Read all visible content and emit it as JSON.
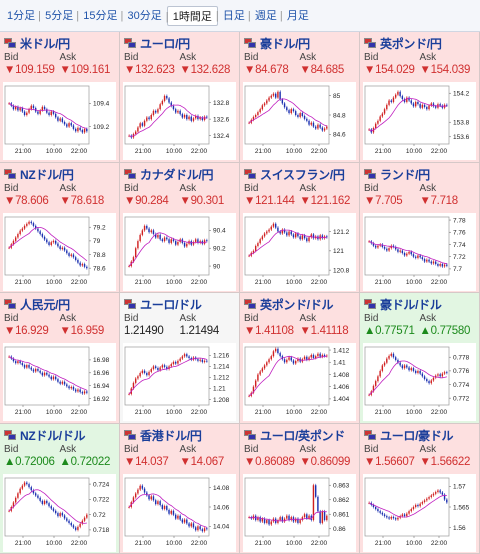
{
  "tabs": [
    {
      "label": "1分足"
    },
    {
      "label": "5分足"
    },
    {
      "label": "15分足"
    },
    {
      "label": "30分足"
    },
    {
      "label": "1時間足",
      "active": true
    },
    {
      "label": "日足"
    },
    {
      "label": "週足"
    },
    {
      "label": "月足"
    }
  ],
  "labels": {
    "bid": "Bid",
    "ask": "Ask"
  },
  "colors": {
    "down_bg": "#fde0e0",
    "up_bg": "#e2f6e2",
    "flat_bg": "#f6f6f6",
    "down_text": "#d03030",
    "up_text": "#1c8a1c",
    "candle_up": "#d02020",
    "candle_down": "#1a2fb0",
    "ma": "#c020c0"
  },
  "pairs": [
    {
      "name": "米ドル/円",
      "trend": "down",
      "bid": "▼109.159",
      "ask": "▼109.161",
      "chart_data": {
        "type": "candlestick",
        "x_ticks": [
          "21:00",
          "10:00",
          "22:00"
        ],
        "y_ticks": [
          "109.4",
          "109.2"
        ],
        "ylim": [
          109.05,
          109.55
        ],
        "close": [
          109.4,
          109.38,
          109.35,
          109.37,
          109.34,
          109.36,
          109.33,
          109.3,
          109.32,
          109.35,
          109.38,
          109.36,
          109.33,
          109.31,
          109.34,
          109.37,
          109.35,
          109.32,
          109.3,
          109.33,
          109.31,
          109.28,
          109.25,
          109.27,
          109.24,
          109.22,
          109.2,
          109.23,
          109.21,
          109.18,
          109.16,
          109.19,
          109.17,
          109.15,
          109.18,
          109.16
        ]
      }
    },
    {
      "name": "ユーロ/円",
      "trend": "down",
      "bid": "▼132.623",
      "ask": "▼132.628",
      "chart_data": {
        "type": "candlestick",
        "x_ticks": [
          "21:00",
          "10:00",
          "22:00"
        ],
        "y_ticks": [
          "132.8",
          "132.6",
          "132.4"
        ],
        "ylim": [
          132.3,
          133.0
        ],
        "close": [
          132.4,
          132.38,
          132.42,
          132.45,
          132.5,
          132.55,
          132.52,
          132.58,
          132.62,
          132.6,
          132.65,
          132.7,
          132.68,
          132.72,
          132.78,
          132.82,
          132.88,
          132.85,
          132.8,
          132.76,
          132.72,
          132.68,
          132.7,
          132.66,
          132.62,
          132.65,
          132.6,
          132.63,
          132.58,
          132.61,
          132.64,
          132.6,
          132.62,
          132.59,
          132.63,
          132.62
        ]
      }
    },
    {
      "name": "豪ドル/円",
      "trend": "down",
      "bid": "▼84.678",
      "ask": "▼84.685",
      "chart_data": {
        "type": "candlestick",
        "x_ticks": [
          "21:00",
          "10:00",
          "22:00"
        ],
        "y_ticks": [
          "85",
          "84.8",
          "84.6"
        ],
        "ylim": [
          84.5,
          85.1
        ],
        "close": [
          84.72,
          84.75,
          84.78,
          84.8,
          84.83,
          84.86,
          84.9,
          84.92,
          84.95,
          84.98,
          85.0,
          85.02,
          84.98,
          85.04,
          84.96,
          84.92,
          84.88,
          84.85,
          84.82,
          84.86,
          84.84,
          84.8,
          84.78,
          84.82,
          84.79,
          84.76,
          84.74,
          84.7,
          84.72,
          84.68,
          84.66,
          84.7,
          84.67,
          84.64,
          84.66,
          84.68
        ]
      }
    },
    {
      "name": "英ポンド/円",
      "trend": "down",
      "bid": "▼154.029",
      "ask": "▼154.039",
      "chart_data": {
        "type": "candlestick",
        "x_ticks": [
          "21:00",
          "10:00",
          "22:00"
        ],
        "y_ticks": [
          "154.2",
          "153.8",
          "153.6"
        ],
        "ylim": [
          153.5,
          154.3
        ],
        "close": [
          153.7,
          153.66,
          153.72,
          153.78,
          153.82,
          153.88,
          153.92,
          153.98,
          154.04,
          154.1,
          154.08,
          154.14,
          154.18,
          154.22,
          154.16,
          154.12,
          154.08,
          154.14,
          154.1,
          154.06,
          154.02,
          154.08,
          154.05,
          154.0,
          154.04,
          154.01,
          153.98,
          154.03,
          154.06,
          154.02,
          154.0,
          154.05,
          154.03,
          154.0,
          154.04,
          154.03
        ]
      }
    },
    {
      "name": "NZドル/円",
      "trend": "down",
      "bid": "▼78.606",
      "ask": "▼78.618",
      "chart_data": {
        "type": "candlestick",
        "x_ticks": [
          "21:00",
          "10:00",
          "22:00"
        ],
        "y_ticks": [
          "79.2",
          "79",
          "78.8",
          "78.6"
        ],
        "ylim": [
          78.5,
          79.35
        ],
        "close": [
          78.9,
          78.95,
          79.0,
          79.05,
          79.1,
          79.15,
          79.18,
          79.22,
          79.25,
          79.28,
          79.26,
          79.22,
          79.18,
          79.14,
          79.1,
          79.06,
          79.02,
          78.98,
          78.94,
          78.98,
          79.0,
          78.96,
          78.92,
          78.88,
          78.9,
          78.86,
          78.82,
          78.78,
          78.8,
          78.76,
          78.72,
          78.68,
          78.64,
          78.66,
          78.62,
          78.6
        ]
      }
    },
    {
      "name": "カナダドル/円",
      "trend": "down",
      "bid": "▼90.284",
      "ask": "▼90.301",
      "chart_data": {
        "type": "candlestick",
        "x_ticks": [
          "21:00",
          "10:00",
          "22:00"
        ],
        "y_ticks": [
          "90.4",
          "90.2",
          "90"
        ],
        "ylim": [
          89.9,
          90.55
        ],
        "close": [
          90.0,
          90.05,
          90.1,
          90.2,
          90.28,
          90.35,
          90.4,
          90.45,
          90.42,
          90.38,
          90.4,
          90.36,
          90.32,
          90.35,
          90.3,
          90.28,
          90.32,
          90.3,
          90.26,
          90.3,
          90.28,
          90.24,
          90.27,
          90.3,
          90.26,
          90.22,
          90.25,
          90.28,
          90.24,
          90.27,
          90.3,
          90.26,
          90.28,
          90.25,
          90.29,
          90.28
        ]
      }
    },
    {
      "name": "スイスフラン/円",
      "trend": "down",
      "bid": "▼121.144",
      "ask": "▼121.162",
      "chart_data": {
        "type": "candlestick",
        "x_ticks": [
          "21:00",
          "10:00",
          "22:00"
        ],
        "y_ticks": [
          "121.2",
          "121",
          "120.8"
        ],
        "ylim": [
          120.75,
          121.35
        ],
        "close": [
          120.95,
          120.98,
          121.0,
          121.05,
          121.08,
          121.12,
          121.15,
          121.18,
          121.2,
          121.22,
          121.25,
          121.28,
          121.24,
          121.2,
          121.18,
          121.22,
          121.19,
          121.16,
          121.2,
          121.17,
          121.14,
          121.18,
          121.15,
          121.12,
          121.16,
          121.13,
          121.1,
          121.14,
          121.17,
          121.13,
          121.15,
          121.12,
          121.16,
          121.13,
          121.15,
          121.14
        ]
      }
    },
    {
      "name": "ランド/円",
      "trend": "down",
      "bid": "▼7.705",
      "ask": "▼7.718",
      "chart_data": {
        "type": "candlestick",
        "x_ticks": [
          "21:00",
          "10:00",
          "22:00"
        ],
        "y_ticks": [
          "7.78",
          "7.76",
          "7.74",
          "7.72",
          "7.7"
        ],
        "ylim": [
          7.69,
          7.785
        ],
        "close": [
          7.745,
          7.742,
          7.738,
          7.735,
          7.738,
          7.74,
          7.736,
          7.733,
          7.73,
          7.734,
          7.738,
          7.736,
          7.732,
          7.728,
          7.73,
          7.726,
          7.722,
          7.725,
          7.728,
          7.724,
          7.72,
          7.718,
          7.722,
          7.719,
          7.716,
          7.712,
          7.715,
          7.712,
          7.709,
          7.712,
          7.708,
          7.705,
          7.708,
          7.704,
          7.707,
          7.705
        ]
      }
    },
    {
      "name": "人民元/円",
      "trend": "down",
      "bid": "▼16.929",
      "ask": "▼16.959",
      "chart_data": {
        "type": "candlestick",
        "x_ticks": [
          "21:00",
          "10:00",
          "22:00"
        ],
        "y_ticks": [
          "16.98",
          "16.96",
          "16.94",
          "16.92"
        ],
        "ylim": [
          16.91,
          17.0
        ],
        "close": [
          16.985,
          16.982,
          16.978,
          16.975,
          16.978,
          16.975,
          16.972,
          16.968,
          16.972,
          16.968,
          16.965,
          16.962,
          16.966,
          16.963,
          16.96,
          16.956,
          16.96,
          16.957,
          16.954,
          16.95,
          16.954,
          16.95,
          16.946,
          16.943,
          16.946,
          16.942,
          16.939,
          16.936,
          16.938,
          16.934,
          16.931,
          16.934,
          16.93,
          16.928,
          16.931,
          16.929
        ]
      }
    },
    {
      "name": "ユーロ/ドル",
      "trend": "flat",
      "bid": "1.21490",
      "ask": "1.21494",
      "chart_data": {
        "type": "candlestick",
        "x_ticks": [
          "21:00",
          "10:00",
          "22:00"
        ],
        "y_ticks": [
          "1.216",
          "1.214",
          "1.212",
          "1.21",
          "1.208"
        ],
        "ylim": [
          1.207,
          1.2175
        ],
        "close": [
          1.209,
          1.21,
          1.211,
          1.2118,
          1.2122,
          1.2128,
          1.2132,
          1.2128,
          1.2124,
          1.213,
          1.2135,
          1.214,
          1.2137,
          1.2133,
          1.2138,
          1.2142,
          1.2139,
          1.2135,
          1.214,
          1.2144,
          1.2148,
          1.2145,
          1.215,
          1.2154,
          1.2158,
          1.2162,
          1.2158,
          1.2155,
          1.2152,
          1.2156,
          1.2153,
          1.215,
          1.2152,
          1.2148,
          1.215,
          1.2149
        ]
      }
    },
    {
      "name": "英ポンド/ドル",
      "trend": "down",
      "bid": "▼1.41108",
      "ask": "▼1.41118",
      "chart_data": {
        "type": "candlestick",
        "x_ticks": [
          "21:00",
          "10:00",
          "22:00"
        ],
        "y_ticks": [
          "1.412",
          "1.41",
          "1.408",
          "1.406",
          "1.404"
        ],
        "ylim": [
          1.403,
          1.4125
        ],
        "close": [
          1.4045,
          1.405,
          1.406,
          1.407,
          1.408,
          1.4085,
          1.409,
          1.4095,
          1.41,
          1.4105,
          1.411,
          1.4118,
          1.4122,
          1.4115,
          1.411,
          1.4105,
          1.41,
          1.4104,
          1.4108,
          1.4103,
          1.4098,
          1.4102,
          1.4106,
          1.4101,
          1.4105,
          1.4109,
          1.4104,
          1.4108,
          1.4112,
          1.4107,
          1.411,
          1.4114,
          1.4109,
          1.4112,
          1.411,
          1.4111
        ]
      }
    },
    {
      "name": "豪ドル/ドル",
      "trend": "up",
      "bid": "▲0.77571",
      "ask": "▲0.77580",
      "chart_data": {
        "type": "candlestick",
        "x_ticks": [
          "21:00",
          "10:00",
          "22:00"
        ],
        "y_ticks": [
          "0.778",
          "0.776",
          "0.774",
          "0.772"
        ],
        "ylim": [
          0.771,
          0.7795
        ],
        "close": [
          0.7725,
          0.773,
          0.7738,
          0.7745,
          0.7752,
          0.776,
          0.7768,
          0.7772,
          0.7778,
          0.7782,
          0.7785,
          0.778,
          0.7776,
          0.7772,
          0.7768,
          0.7764,
          0.7768,
          0.7765,
          0.7761,
          0.7764,
          0.776,
          0.7757,
          0.776,
          0.7756,
          0.7752,
          0.7748,
          0.7745,
          0.7742,
          0.7746,
          0.775,
          0.7753,
          0.7755,
          0.7752,
          0.7756,
          0.7758,
          0.7757
        ]
      }
    },
    {
      "name": "NZドル/ドル",
      "trend": "up",
      "bid": "▲0.72006",
      "ask": "▲0.72022",
      "chart_data": {
        "type": "candlestick",
        "x_ticks": [
          "21:00",
          "10:00",
          "22:00"
        ],
        "y_ticks": [
          "0.724",
          "0.722",
          "0.72",
          "0.718"
        ],
        "ylim": [
          0.7172,
          0.7248
        ],
        "close": [
          0.7205,
          0.721,
          0.7216,
          0.7222,
          0.7228,
          0.7234,
          0.7238,
          0.7242,
          0.724,
          0.7236,
          0.7232,
          0.7228,
          0.7225,
          0.7222,
          0.7218,
          0.7214,
          0.7218,
          0.7215,
          0.7211,
          0.7208,
          0.7205,
          0.7202,
          0.7198,
          0.7202,
          0.7199,
          0.7195,
          0.7192,
          0.7189,
          0.7186,
          0.7183,
          0.718,
          0.7184,
          0.7188,
          0.7192,
          0.7196,
          0.72
        ]
      }
    },
    {
      "name": "香港ドル/円",
      "trend": "down",
      "bid": "▼14.037",
      "ask": "▼14.067",
      "chart_data": {
        "type": "candlestick",
        "x_ticks": [
          "21:00",
          "10:00",
          "22:00"
        ],
        "y_ticks": [
          "14.08",
          "14.06",
          "14.04"
        ],
        "ylim": [
          14.03,
          14.09
        ],
        "close": [
          14.06,
          14.065,
          14.07,
          14.074,
          14.078,
          14.082,
          14.079,
          14.075,
          14.072,
          14.068,
          14.071,
          14.067,
          14.063,
          14.066,
          14.062,
          14.058,
          14.061,
          14.057,
          14.053,
          14.056,
          14.052,
          14.048,
          14.051,
          14.047,
          14.044,
          14.047,
          14.043,
          14.04,
          14.043,
          14.039,
          14.036,
          14.04,
          14.037,
          14.035,
          14.038,
          14.037
        ]
      }
    },
    {
      "name": "ユーロ/英ポンド",
      "trend": "down",
      "bid": "▼0.86089",
      "ask": "▼0.86099",
      "chart_data": {
        "type": "candlestick",
        "x_ticks": [
          "21:00",
          "10:00",
          "22:00"
        ],
        "y_ticks": [
          "0.863",
          "0.862",
          "0.861",
          "0.86"
        ],
        "ylim": [
          0.8595,
          0.8635
        ],
        "close": [
          0.8608,
          0.8607,
          0.8609,
          0.8606,
          0.8608,
          0.8605,
          0.8607,
          0.8604,
          0.8606,
          0.8603,
          0.8605,
          0.8607,
          0.8604,
          0.8606,
          0.8608,
          0.8605,
          0.8607,
          0.8609,
          0.8606,
          0.8608,
          0.8605,
          0.8607,
          0.8604,
          0.8606,
          0.8608,
          0.861,
          0.8607,
          0.8609,
          0.8606,
          0.863,
          0.8622,
          0.8612,
          0.8604,
          0.8612,
          0.8606,
          0.8609
        ]
      }
    },
    {
      "name": "ユーロ/豪ドル",
      "trend": "down",
      "bid": "▼1.56607",
      "ask": "▼1.56622",
      "chart_data": {
        "type": "candlestick",
        "x_ticks": [
          "21:00",
          "10:00",
          "22:00"
        ],
        "y_ticks": [
          "1.57",
          "1.565",
          "1.56"
        ],
        "ylim": [
          1.558,
          1.572
        ],
        "close": [
          1.566,
          1.5655,
          1.565,
          1.5645,
          1.564,
          1.5636,
          1.5632,
          1.5628,
          1.5625,
          1.5622,
          1.5626,
          1.5623,
          1.562,
          1.5624,
          1.5628,
          1.5632,
          1.5628,
          1.5634,
          1.564,
          1.5645,
          1.565,
          1.5655,
          1.5652,
          1.5658,
          1.5662,
          1.5666,
          1.567,
          1.5674,
          1.5678,
          1.5682,
          1.5686,
          1.569,
          1.5685,
          1.568,
          1.5668,
          1.5661
        ]
      }
    }
  ]
}
